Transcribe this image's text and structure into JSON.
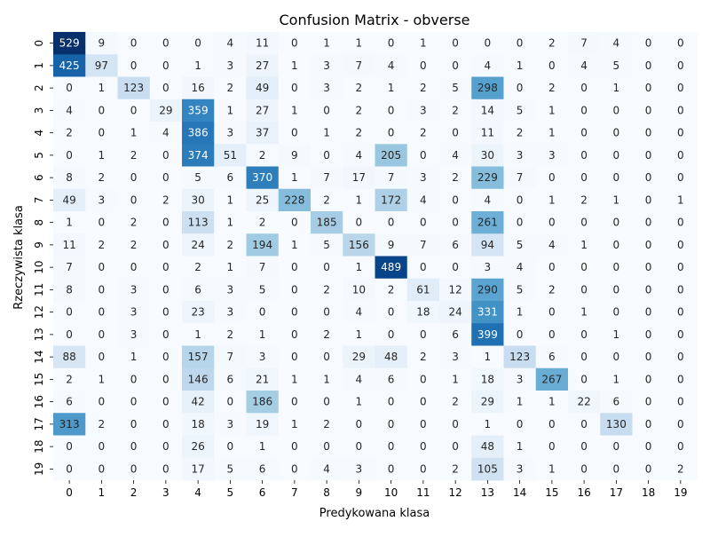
{
  "chart_data": {
    "type": "heatmap",
    "title": "Confusion Matrix - obverse",
    "xlabel": "Predykowana klasa",
    "ylabel": "Rzeczywista klasa",
    "x_categories": [
      "0",
      "1",
      "2",
      "3",
      "4",
      "5",
      "6",
      "7",
      "8",
      "9",
      "10",
      "11",
      "12",
      "13",
      "14",
      "15",
      "16",
      "17",
      "18",
      "19"
    ],
    "y_categories": [
      "0",
      "1",
      "2",
      "3",
      "4",
      "5",
      "6",
      "7",
      "8",
      "9",
      "10",
      "11",
      "12",
      "13",
      "14",
      "15",
      "16",
      "17",
      "18",
      "19"
    ],
    "colormap": "Blues",
    "colorbar": false,
    "value_range": [
      0,
      529
    ],
    "values": [
      [
        529,
        9,
        0,
        0,
        0,
        4,
        11,
        0,
        1,
        1,
        0,
        1,
        0,
        0,
        0,
        2,
        7,
        4,
        0,
        0
      ],
      [
        425,
        97,
        0,
        0,
        1,
        3,
        27,
        1,
        3,
        7,
        4,
        0,
        0,
        4,
        1,
        0,
        4,
        5,
        0,
        0
      ],
      [
        0,
        1,
        123,
        0,
        16,
        2,
        49,
        0,
        3,
        2,
        1,
        2,
        5,
        298,
        0,
        2,
        0,
        1,
        0,
        0
      ],
      [
        4,
        0,
        0,
        29,
        359,
        1,
        27,
        1,
        0,
        2,
        0,
        3,
        2,
        14,
        5,
        1,
        0,
        0,
        0,
        0
      ],
      [
        2,
        0,
        1,
        4,
        386,
        3,
        37,
        0,
        1,
        2,
        0,
        2,
        0,
        11,
        2,
        1,
        0,
        0,
        0,
        0
      ],
      [
        0,
        1,
        2,
        0,
        374,
        51,
        2,
        9,
        0,
        4,
        205,
        0,
        4,
        30,
        3,
        3,
        0,
        0,
        0,
        0
      ],
      [
        8,
        2,
        0,
        0,
        5,
        6,
        370,
        1,
        7,
        17,
        7,
        3,
        2,
        229,
        7,
        0,
        0,
        0,
        0,
        0
      ],
      [
        49,
        3,
        0,
        2,
        30,
        1,
        25,
        228,
        2,
        1,
        172,
        4,
        0,
        4,
        0,
        1,
        2,
        1,
        0,
        1
      ],
      [
        1,
        0,
        2,
        0,
        113,
        1,
        2,
        0,
        185,
        0,
        0,
        0,
        0,
        261,
        0,
        0,
        0,
        0,
        0,
        0
      ],
      [
        11,
        2,
        2,
        0,
        24,
        2,
        194,
        1,
        5,
        156,
        9,
        7,
        6,
        94,
        5,
        4,
        1,
        0,
        0,
        0
      ],
      [
        7,
        0,
        0,
        0,
        2,
        1,
        7,
        0,
        0,
        1,
        489,
        0,
        0,
        3,
        4,
        0,
        0,
        0,
        0,
        0
      ],
      [
        8,
        0,
        3,
        0,
        6,
        3,
        5,
        0,
        2,
        10,
        2,
        61,
        12,
        290,
        5,
        2,
        0,
        0,
        0,
        0
      ],
      [
        0,
        0,
        3,
        0,
        23,
        3,
        0,
        0,
        0,
        4,
        0,
        18,
        24,
        331,
        1,
        0,
        1,
        0,
        0,
        0
      ],
      [
        0,
        0,
        3,
        0,
        1,
        2,
        1,
        0,
        2,
        1,
        0,
        0,
        6,
        399,
        0,
        0,
        0,
        1,
        0,
        0
      ],
      [
        88,
        0,
        1,
        0,
        157,
        7,
        3,
        0,
        0,
        29,
        48,
        2,
        3,
        1,
        123,
        6,
        0,
        0,
        0,
        0
      ],
      [
        2,
        1,
        0,
        0,
        146,
        6,
        21,
        1,
        1,
        4,
        6,
        0,
        1,
        18,
        3,
        267,
        0,
        1,
        0,
        0
      ],
      [
        6,
        0,
        0,
        0,
        42,
        0,
        186,
        0,
        0,
        1,
        0,
        0,
        2,
        29,
        1,
        1,
        22,
        6,
        0,
        0
      ],
      [
        313,
        2,
        0,
        0,
        18,
        3,
        19,
        1,
        2,
        0,
        0,
        0,
        0,
        1,
        0,
        0,
        0,
        130,
        0,
        0
      ],
      [
        0,
        0,
        0,
        0,
        26,
        0,
        1,
        0,
        0,
        0,
        0,
        0,
        0,
        48,
        1,
        0,
        0,
        0,
        0,
        0
      ],
      [
        0,
        0,
        0,
        0,
        17,
        5,
        6,
        0,
        4,
        3,
        0,
        0,
        2,
        105,
        3,
        1,
        0,
        0,
        0,
        2
      ]
    ]
  }
}
